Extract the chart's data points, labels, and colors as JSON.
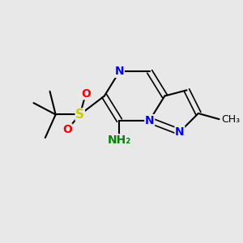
{
  "bg_color": "#e8e8e8",
  "atom_colors": {
    "N": "#0000ff",
    "S": "#cccc00",
    "O": "#ff0000",
    "C": "#000000",
    "NH2": "#008800"
  },
  "bond_color": "#000000"
}
